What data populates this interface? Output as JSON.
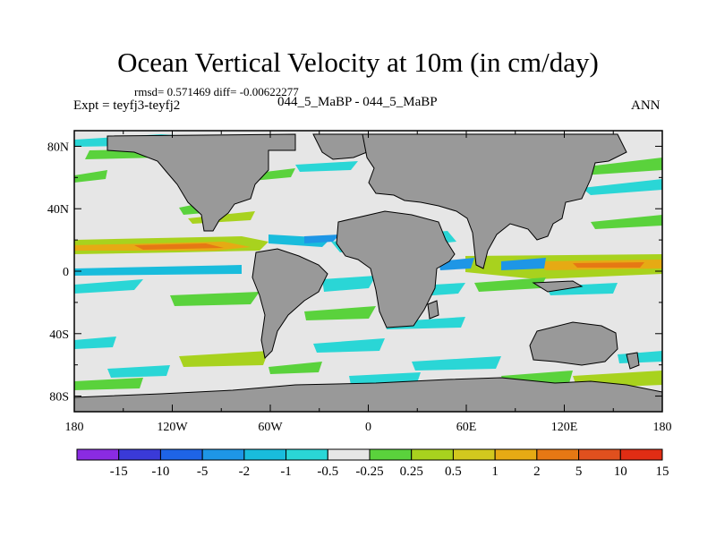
{
  "title": "Ocean Vertical Velocity at 10m (in cm/day)",
  "stats_line": "rmsd= 0.571469 diff= -0.00622277",
  "expt_line": "Expt = teyfj3-teyfj2",
  "case_line": "044_5_MaBP - 044_5_MaBP",
  "season": "ANN",
  "lat_ticks": [
    {
      "label": "80N",
      "lat": 80
    },
    {
      "label": "40N",
      "lat": 40
    },
    {
      "label": "0",
      "lat": 0
    },
    {
      "label": "40S",
      "lat": -40
    },
    {
      "label": "80S",
      "lat": -80
    }
  ],
  "lon_ticks": [
    {
      "label": "180",
      "lon": -180
    },
    {
      "label": "120W",
      "lon": -120
    },
    {
      "label": "60W",
      "lon": -60
    },
    {
      "label": "0",
      "lon": 0
    },
    {
      "label": "60E",
      "lon": 60
    },
    {
      "label": "120E",
      "lon": 120
    },
    {
      "label": "180",
      "lon": 180
    }
  ],
  "colorbar": {
    "colors": [
      "#8a2be2",
      "#3a3ad8",
      "#1e64e6",
      "#1e96e6",
      "#19bcdc",
      "#2ad6d6",
      "#e6e6e6",
      "#5ad23c",
      "#a8d21e",
      "#d2c81e",
      "#e6aa14",
      "#e67814",
      "#e0501e",
      "#e02d14"
    ],
    "labels": [
      "-15",
      "-10",
      "-5",
      "-2",
      "-1",
      "-0.5",
      "-0.25",
      "0.25",
      "0.5",
      "1",
      "2",
      "5",
      "10",
      "15"
    ]
  },
  "colors": {
    "ocean_background": "#e6e6e6",
    "land": "#999999"
  }
}
